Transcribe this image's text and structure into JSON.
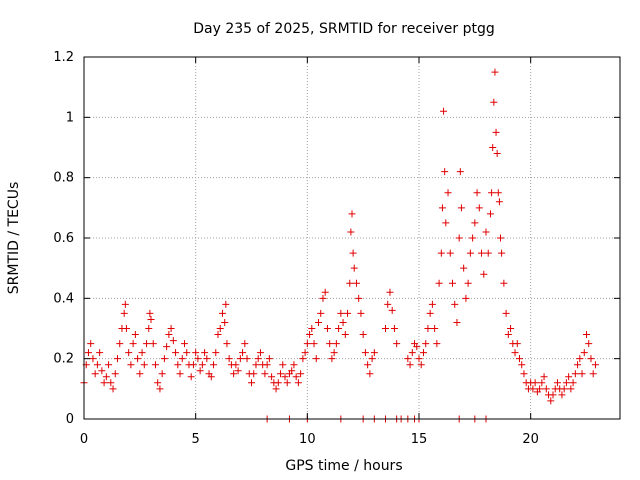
{
  "chart_data": {
    "type": "scatter",
    "title": "Day 235 of 2025, SRMTID for receiver ptgg",
    "xlabel": "GPS time / hours",
    "ylabel": "SRMTID / TECUs",
    "xlim": [
      0,
      24
    ],
    "ylim": [
      0,
      1.2
    ],
    "x_ticks": [
      0,
      5,
      10,
      15,
      20
    ],
    "x_tick_labels": [
      "0",
      "5",
      "10",
      "15",
      "20"
    ],
    "y_ticks": [
      0,
      0.2,
      0.4,
      0.6,
      0.8,
      1.0,
      1.2
    ],
    "y_tick_labels": [
      "0",
      "0.2",
      "0.4",
      "0.6",
      "0.8",
      "1",
      "1.2"
    ],
    "grid": true,
    "marker": "plus",
    "color": "#e00000",
    "series": [
      {
        "name": "SRMTID",
        "x": [
          0.0,
          0.1,
          0.2,
          0.3,
          0.4,
          0.5,
          0.6,
          0.7,
          0.8,
          0.9,
          1.0,
          1.1,
          1.2,
          1.3,
          1.4,
          1.5,
          1.6,
          1.7,
          1.8,
          1.85,
          1.9,
          2.0,
          2.1,
          2.2,
          2.3,
          2.4,
          2.5,
          2.6,
          2.7,
          2.8,
          2.9,
          2.95,
          3.0,
          3.1,
          3.2,
          3.3,
          3.4,
          3.5,
          3.6,
          3.7,
          3.8,
          3.9,
          4.0,
          4.1,
          4.2,
          4.3,
          4.4,
          4.5,
          4.6,
          4.7,
          4.8,
          4.9,
          5.0,
          5.1,
          5.2,
          5.3,
          5.4,
          5.5,
          5.6,
          5.7,
          5.8,
          5.9,
          6.0,
          6.1,
          6.2,
          6.3,
          6.35,
          6.4,
          6.5,
          6.6,
          6.7,
          6.8,
          6.9,
          7.0,
          7.1,
          7.2,
          7.3,
          7.4,
          7.5,
          7.6,
          7.7,
          7.8,
          7.9,
          8.0,
          8.1,
          8.2,
          8.3,
          8.4,
          8.5,
          8.6,
          8.7,
          8.8,
          8.9,
          9.0,
          9.1,
          9.2,
          9.3,
          9.4,
          9.5,
          9.6,
          9.7,
          9.8,
          9.9,
          10.0,
          10.1,
          10.2,
          10.3,
          10.4,
          10.5,
          10.6,
          10.7,
          10.8,
          10.9,
          11.0,
          11.1,
          11.2,
          11.3,
          11.4,
          11.5,
          11.6,
          11.7,
          11.8,
          11.9,
          11.95,
          12.0,
          12.05,
          12.1,
          12.2,
          12.3,
          12.4,
          12.5,
          12.6,
          12.7,
          12.8,
          12.9,
          13.0,
          13.5,
          13.6,
          13.7,
          13.8,
          13.9,
          14.0,
          14.5,
          14.6,
          14.7,
          14.8,
          14.9,
          15.0,
          15.1,
          15.2,
          15.3,
          15.4,
          15.5,
          15.6,
          15.7,
          15.8,
          15.9,
          16.0,
          16.05,
          16.1,
          16.15,
          16.2,
          16.3,
          16.4,
          16.5,
          16.6,
          16.7,
          16.8,
          16.85,
          16.9,
          17.0,
          17.1,
          17.2,
          17.3,
          17.4,
          17.5,
          17.6,
          17.7,
          17.8,
          17.9,
          18.0,
          18.1,
          18.2,
          18.25,
          18.3,
          18.35,
          18.4,
          18.45,
          18.5,
          18.55,
          18.6,
          18.65,
          18.7,
          18.8,
          18.9,
          19.0,
          19.1,
          19.2,
          19.3,
          19.4,
          19.5,
          19.6,
          19.7,
          19.8,
          19.9,
          20.0,
          20.1,
          20.2,
          20.3,
          20.4,
          20.5,
          20.6,
          20.7,
          20.8,
          20.9,
          21.0,
          21.1,
          21.2,
          21.3,
          21.4,
          21.5,
          21.6,
          21.7,
          21.8,
          21.9,
          22.0,
          22.1,
          22.2,
          22.3,
          22.4,
          22.5,
          22.6,
          22.7,
          22.8,
          22.9,
          8.2,
          9.2,
          10.0,
          11.5,
          12.5,
          13.0,
          13.5,
          14.0,
          14.2,
          14.5,
          14.8,
          15.0,
          16.8,
          17.5,
          18.0
        ],
        "y": [
          0.12,
          0.18,
          0.22,
          0.25,
          0.2,
          0.15,
          0.18,
          0.22,
          0.16,
          0.12,
          0.14,
          0.18,
          0.12,
          0.1,
          0.15,
          0.2,
          0.25,
          0.3,
          0.35,
          0.38,
          0.3,
          0.22,
          0.18,
          0.25,
          0.28,
          0.2,
          0.15,
          0.22,
          0.18,
          0.25,
          0.3,
          0.35,
          0.33,
          0.25,
          0.18,
          0.12,
          0.1,
          0.15,
          0.2,
          0.24,
          0.28,
          0.3,
          0.26,
          0.22,
          0.18,
          0.15,
          0.2,
          0.25,
          0.22,
          0.18,
          0.14,
          0.18,
          0.22,
          0.2,
          0.16,
          0.18,
          0.22,
          0.2,
          0.15,
          0.14,
          0.18,
          0.22,
          0.28,
          0.3,
          0.35,
          0.32,
          0.38,
          0.25,
          0.2,
          0.18,
          0.15,
          0.18,
          0.16,
          0.2,
          0.22,
          0.25,
          0.2,
          0.15,
          0.12,
          0.15,
          0.18,
          0.2,
          0.22,
          0.18,
          0.15,
          0.18,
          0.2,
          0.14,
          0.12,
          0.1,
          0.12,
          0.15,
          0.18,
          0.14,
          0.12,
          0.15,
          0.16,
          0.18,
          0.14,
          0.12,
          0.15,
          0.2,
          0.22,
          0.25,
          0.28,
          0.3,
          0.25,
          0.2,
          0.32,
          0.35,
          0.4,
          0.42,
          0.3,
          0.25,
          0.2,
          0.22,
          0.25,
          0.3,
          0.35,
          0.32,
          0.28,
          0.35,
          0.45,
          0.62,
          0.68,
          0.55,
          0.5,
          0.45,
          0.4,
          0.35,
          0.28,
          0.22,
          0.18,
          0.15,
          0.2,
          0.22,
          0.3,
          0.38,
          0.42,
          0.36,
          0.3,
          0.25,
          0.2,
          0.18,
          0.22,
          0.25,
          0.24,
          0.2,
          0.18,
          0.22,
          0.25,
          0.3,
          0.35,
          0.38,
          0.3,
          0.25,
          0.45,
          0.55,
          0.7,
          1.02,
          0.82,
          0.65,
          0.75,
          0.55,
          0.45,
          0.38,
          0.32,
          0.6,
          0.82,
          0.7,
          0.5,
          0.4,
          0.45,
          0.55,
          0.6,
          0.65,
          0.75,
          0.7,
          0.55,
          0.48,
          0.62,
          0.55,
          0.68,
          0.75,
          0.9,
          1.05,
          1.15,
          0.95,
          0.88,
          0.75,
          0.72,
          0.6,
          0.55,
          0.45,
          0.35,
          0.28,
          0.3,
          0.25,
          0.22,
          0.25,
          0.2,
          0.18,
          0.15,
          0.12,
          0.1,
          0.12,
          0.1,
          0.12,
          0.09,
          0.1,
          0.12,
          0.14,
          0.1,
          0.08,
          0.06,
          0.08,
          0.1,
          0.12,
          0.1,
          0.08,
          0.1,
          0.12,
          0.14,
          0.1,
          0.12,
          0.15,
          0.18,
          0.2,
          0.15,
          0.22,
          0.28,
          0.25,
          0.2,
          0.15,
          0.18,
          0,
          0,
          0,
          0,
          0,
          0,
          0,
          0,
          0,
          0,
          0,
          0,
          0,
          0,
          0
        ]
      }
    ]
  }
}
